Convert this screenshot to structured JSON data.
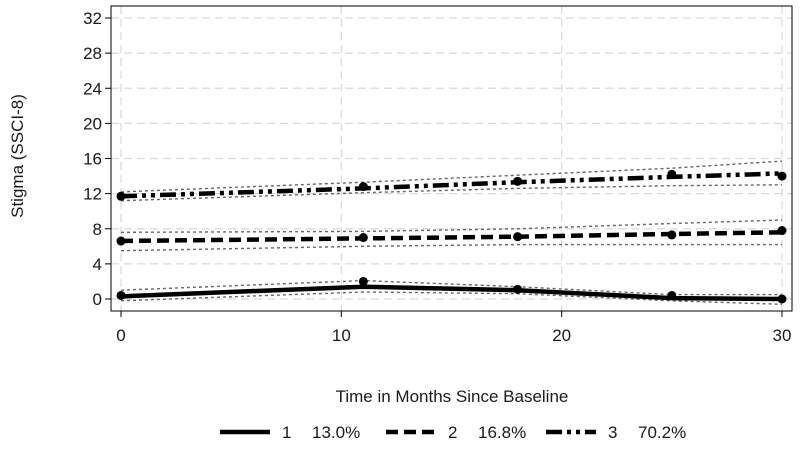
{
  "chart_data": {
    "type": "line",
    "title": "",
    "xlabel": "Time in Months Since Baseline",
    "ylabel": "Stigma (SSCI-8)",
    "xlim": [
      0,
      30
    ],
    "ylim": [
      0,
      32
    ],
    "xticks": [
      0,
      10,
      20,
      30
    ],
    "yticks": [
      0,
      4,
      8,
      12,
      16,
      20,
      24,
      28,
      32
    ],
    "grid": true,
    "legend_position": "bottom",
    "series": [
      {
        "name": "1",
        "percent_label": "13.0%",
        "line_style": "solid",
        "color": "#000000",
        "x": [
          0,
          11,
          18,
          25,
          30
        ],
        "observed": [
          0.4,
          2.0,
          1.1,
          0.4,
          0.0
        ],
        "fitted": [
          0.3,
          1.4,
          1.0,
          0.1,
          0.0
        ],
        "ci_lower": [
          -0.2,
          0.8,
          0.6,
          -0.2,
          -0.6
        ],
        "ci_upper": [
          1.0,
          2.1,
          1.4,
          0.5,
          0.5
        ]
      },
      {
        "name": "2",
        "percent_label": "16.8%",
        "line_style": "dashed",
        "color": "#000000",
        "x": [
          0,
          11,
          18,
          25,
          30
        ],
        "observed": [
          6.6,
          7.0,
          7.1,
          7.3,
          7.8
        ],
        "fitted": [
          6.6,
          6.9,
          7.1,
          7.4,
          7.6
        ],
        "ci_lower": [
          5.5,
          6.0,
          6.2,
          6.2,
          6.2
        ],
        "ci_upper": [
          7.6,
          7.7,
          8.0,
          8.6,
          9.0
        ]
      },
      {
        "name": "3",
        "percent_label": "70.2%",
        "line_style": "dash-dot-dot",
        "color": "#000000",
        "x": [
          0,
          11,
          18,
          25,
          30
        ],
        "observed": [
          11.7,
          12.8,
          13.4,
          14.2,
          14.0
        ],
        "fitted": [
          11.7,
          12.6,
          13.3,
          13.9,
          14.3
        ],
        "ci_lower": [
          11.2,
          12.1,
          12.6,
          12.9,
          13.0
        ],
        "ci_upper": [
          12.2,
          13.3,
          14.1,
          14.9,
          15.7
        ]
      }
    ]
  }
}
